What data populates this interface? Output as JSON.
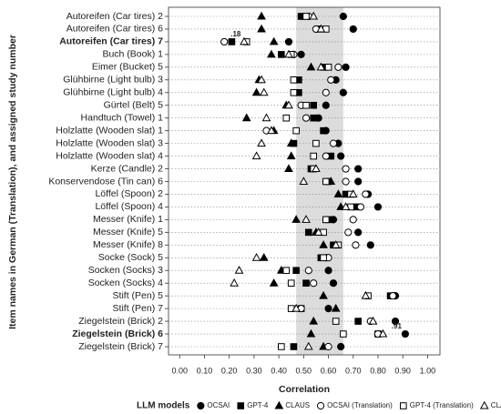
{
  "chart_data": {
    "type": "dot",
    "x_label": "Correlation",
    "y_label": "Item names in German (Translation), and assigned study number",
    "legend_title": "LLM models",
    "categories": [
      "Autoreifen (Car tires) 2",
      "Autoreifen (Car tires) 6",
      "Autoreifen (Car tires) 7",
      "Buch (Book) 1",
      "Eimer (Bucket) 5",
      "Glühbirne (Light bulb) 3",
      "Glühbirne (Light bulb) 4",
      "Gürtel (Belt) 5",
      "Handtuch (Towel) 1",
      "Holzlatte (Wooden slat) 1",
      "Holzlatte (Wooden slat) 3",
      "Holzlatte (Wooden slat) 4",
      "Kerze (Candle) 2",
      "Konservendose (Tin can) 6",
      "Löffel (Spoon) 2",
      "Löffel (Spoon) 4",
      "Messer (Knife) 1",
      "Messer (Knife) 5",
      "Messer (Knife) 8",
      "Socke (Sock) 5",
      "Socken (Socks) 3",
      "Socken (Socks) 4",
      "Stift (Pen) 5",
      "Stift (Pen) 7",
      "Ziegelstein (Brick) 2",
      "Ziegelstein (Brick) 6",
      "Ziegelstein (Brick) 7"
    ],
    "bold": [
      2,
      25
    ],
    "band": [
      0.47,
      0.66
    ],
    "xlim": [
      -0.045,
      1.05
    ],
    "xticks": [
      {
        "value": 0,
        "label": "0.00"
      },
      {
        "value": 0.1,
        "label": "0.10"
      },
      {
        "value": 0.2,
        "label": "0.20"
      },
      {
        "value": 0.3,
        "label": "0.30"
      },
      {
        "value": 0.4,
        "label": "0.40"
      },
      {
        "value": 0.5,
        "label": "0.50"
      },
      {
        "value": 0.6,
        "label": "0.60"
      },
      {
        "value": 0.7,
        "label": "0.70"
      },
      {
        "value": 0.8,
        "label": "0.80"
      },
      {
        "value": 0.9,
        "label": "0.90"
      },
      {
        "value": 1,
        "label": "1.00"
      }
    ],
    "series": [
      {
        "name": "OCSAI",
        "color": "#000000",
        "marker": "circle",
        "filled": true,
        "values": [
          0.66,
          0.7,
          0.44,
          0.49,
          0.67,
          0.63,
          0.66,
          0.59,
          0.56,
          0.59,
          0.64,
          0.65,
          0.72,
          0.72,
          0.76,
          0.8,
          0.62,
          0.72,
          0.77,
          0.59,
          0.6,
          0.62,
          0.87,
          0.6,
          0.87,
          0.91,
          0.65
        ],
        "value_labels": [
          null,
          null,
          null,
          null,
          null,
          null,
          null,
          null,
          null,
          null,
          null,
          null,
          null,
          null,
          null,
          null,
          null,
          null,
          null,
          null,
          null,
          null,
          null,
          null,
          null,
          ".91",
          null
        ]
      },
      {
        "name": "GPT-4",
        "color": "#000000",
        "marker": "square",
        "filled": true,
        "values": [
          0.49,
          0.56,
          0.21,
          0.41,
          0.58,
          0.48,
          0.48,
          0.54,
          0.54,
          0.58,
          0.46,
          0.61,
          0.53,
          0.6,
          0.67,
          0.71,
          0.6,
          0.52,
          0.62,
          0.57,
          0.47,
          0.51,
          0.85,
          0.49,
          0.72,
          0.8,
          0.46
        ]
      },
      {
        "name": "CLAUS",
        "color": "#000000",
        "marker": "triangle",
        "filled": true,
        "values": [
          0.33,
          0.33,
          0.38,
          0.37,
          0.53,
          0.32,
          0.31,
          0.43,
          0.27,
          0.38,
          0.45,
          0.45,
          0.44,
          0.61,
          0.64,
          0.65,
          0.47,
          0.55,
          0.58,
          0.34,
          0.41,
          0.38,
          0.58,
          0.63,
          0.54,
          0.53,
          0.58
        ]
      },
      {
        "name": "OCSAI (Translation)",
        "color": "#000000",
        "marker": "circle",
        "filled": false,
        "values": [
          0.52,
          0.55,
          0.18,
          0.46,
          0.64,
          0.61,
          0.59,
          0.49,
          0.51,
          0.35,
          0.62,
          0.59,
          0.67,
          0.67,
          0.75,
          0.73,
          0.7,
          0.68,
          0.71,
          0.6,
          0.52,
          0.54,
          0.86,
          0.49,
          0.77,
          0.8,
          0.6
        ],
        "value_labels": [
          null,
          null,
          ".18",
          null,
          null,
          null,
          null,
          null,
          null,
          null,
          null,
          null,
          null,
          null,
          null,
          null,
          null,
          null,
          null,
          null,
          null,
          null,
          null,
          null,
          null,
          null,
          null
        ]
      },
      {
        "name": "GPT-4 (Translation)",
        "color": "#000000",
        "marker": "square",
        "filled": false,
        "values": [
          0.51,
          0.59,
          0.27,
          0.45,
          0.6,
          0.46,
          0.46,
          0.51,
          0.43,
          0.47,
          0.55,
          0.54,
          0.54,
          0.59,
          0.69,
          0.69,
          0.59,
          0.58,
          0.64,
          0.58,
          0.43,
          0.45,
          0.76,
          0.45,
          0.63,
          0.66,
          0.41
        ]
      },
      {
        "name": "CLAUS (Translation)",
        "color": "#000000",
        "marker": "triangle",
        "filled": false,
        "values": [
          0.54,
          0.57,
          0.26,
          0.44,
          0.57,
          0.33,
          0.34,
          0.44,
          0.35,
          0.37,
          0.33,
          0.31,
          0.55,
          0.5,
          0.7,
          0.67,
          0.51,
          0.56,
          0.63,
          0.31,
          0.24,
          0.22,
          0.75,
          0.47,
          0.78,
          0.82,
          0.52
        ]
      }
    ]
  }
}
